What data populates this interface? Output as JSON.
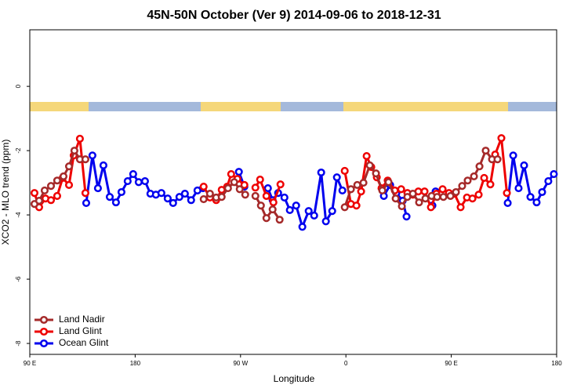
{
  "chart_data": {
    "type": "line",
    "title": "45N-50N October (Ver 9)   2014-09-06 to 2018-12-31",
    "x_label": "Longitude",
    "y_label": "XCO2 - MLO trend (ppm)",
    "xlim": [
      90,
      540
    ],
    "xticks": [
      {
        "value": 90,
        "label": "90 E"
      },
      180,
      {
        "value": 270,
        "label": "90 W"
      },
      {
        "value": 360,
        "label": "0"
      },
      {
        "value": 450,
        "label": "90 E"
      },
      {
        "value": 540,
        "label": "180"
      }
    ],
    "ylim": [
      -8.34,
      1.76
    ],
    "yticks": [
      -8,
      -6,
      -4,
      -2,
      0
    ],
    "legend": "bottom-left",
    "series": [
      {
        "name": "Land Nadir",
        "color": "#a52a2a",
        "x": [
          94.0,
          98.0,
          102.7,
          108.1,
          113.4,
          118.8,
          123.5,
          128.1,
          132.8,
          137.5,
          null,
          238.5,
          243.9,
          249.2,
          253.9,
          259.3,
          264.6,
          269.3,
          274.0,
          null,
          282.7,
          287.4,
          292.1,
          297.4,
          303.4,
          null,
          359.0,
          364.3,
          369.7,
          375.0,
          380.4,
          385.7,
          391.1,
          396.4,
          402.5,
          407.8,
          412.5,
          417.2,
          422.5,
          427.9,
          433.2,
          437.9,
          443.3,
          449.3,
          454.0,
          459.3,
          464.0,
          469.4,
          474.1,
          479.4,
          484.8,
          489.5
        ],
        "values": [
          -3.66,
          -3.56,
          -3.24,
          -3.1,
          -2.93,
          -2.8,
          -2.49,
          -2.0,
          -2.27,
          -2.27,
          null,
          -3.51,
          -3.34,
          -3.46,
          -3.44,
          -3.17,
          -2.98,
          -3.2,
          -3.37,
          null,
          -3.41,
          -3.71,
          -4.1,
          -3.83,
          -4.15,
          null,
          -3.76,
          -3.2,
          -3.07,
          -3.0,
          -2.46,
          -2.71,
          -3.24,
          -2.98,
          -3.49,
          -3.73,
          -3.44,
          -3.34,
          -3.61,
          -3.49,
          -3.41,
          -3.44,
          -3.44,
          -3.41,
          -3.29,
          -3.1,
          -2.93,
          -2.8,
          -2.49,
          -2.0,
          -2.27,
          -2.27
        ]
      },
      {
        "name": "Land Glint",
        "color": "#ee0000",
        "x": [
          94.0,
          98.0,
          103.4,
          108.1,
          113.4,
          118.1,
          123.5,
          127.5,
          132.8,
          137.5,
          null,
          238.5,
          243.9,
          249.2,
          253.9,
          258.6,
          262.0,
          267.3,
          273.3,
          null,
          282.7,
          286.7,
          292.1,
          298.1,
          304.1,
          null,
          359.0,
          364.3,
          369.0,
          373.0,
          377.7,
          381.7,
          386.4,
          390.4,
          395.7,
          401.8,
          407.2,
          412.5,
          417.2,
          421.9,
          427.2,
          432.6,
          437.3,
          442.6,
          448.0,
          452.7,
          458.0,
          463.4,
          468.1,
          473.4,
          478.1,
          483.4,
          487.5,
          492.8,
          497.5
        ],
        "values": [
          -3.32,
          -3.76,
          -3.49,
          -3.54,
          -3.41,
          -2.85,
          -3.07,
          -2.15,
          -1.63,
          -3.32,
          null,
          -3.12,
          -3.46,
          -3.54,
          -3.22,
          -3.12,
          -2.73,
          -2.88,
          -3.07,
          null,
          -3.15,
          -2.9,
          -3.41,
          -3.61,
          -3.05,
          null,
          -2.63,
          -3.66,
          -3.71,
          -3.27,
          -2.17,
          -2.51,
          -2.83,
          -3.17,
          -2.93,
          -3.24,
          -3.2,
          -3.32,
          -3.37,
          -3.27,
          -3.27,
          -3.76,
          -3.34,
          -3.2,
          -3.32,
          -3.34,
          -3.76,
          -3.46,
          -3.49,
          -3.37,
          -2.85,
          -3.05,
          -2.12,
          -1.61,
          -3.32
        ]
      },
      {
        "name": "Ocean Glint",
        "color": "#0000ee",
        "x": [
          138.2,
          143.5,
          148.2,
          152.9,
          158.3,
          163.6,
          168.3,
          173.6,
          178.3,
          183.0,
          188.4,
          193.0,
          197.7,
          202.4,
          207.8,
          212.4,
          217.8,
          222.5,
          227.8,
          233.2,
          237.9,
          null,
          268.6,
          273.3,
          null,
          293.4,
          297.4,
          302.1,
          307.5,
          312.1,
          317.5,
          322.8,
          328.2,
          332.9,
          338.9,
          342.9,
          348.3,
          352.3,
          357.0,
          null,
          392.4,
          397.8,
          403.1,
          408.5,
          411.8,
          null,
          433.9,
          436.6,
          null,
          498.2,
          502.9,
          507.5,
          512.2,
          517.6,
          522.9,
          527.6,
          532.9,
          537.6
        ],
        "values": [
          -3.63,
          -2.15,
          -3.17,
          -2.46,
          -3.44,
          -3.61,
          -3.29,
          -2.95,
          -2.73,
          -2.98,
          -2.95,
          -3.34,
          -3.37,
          -3.32,
          -3.49,
          -3.63,
          -3.44,
          -3.34,
          -3.54,
          -3.24,
          -3.17,
          null,
          -2.66,
          -3.12,
          null,
          -3.17,
          -3.54,
          -3.32,
          -3.46,
          -3.85,
          -3.71,
          -4.37,
          -3.88,
          -4.02,
          -2.68,
          -4.2,
          -3.88,
          -2.83,
          -3.24,
          null,
          -3.41,
          -3.07,
          -3.32,
          -3.56,
          -4.05,
          null,
          -3.71,
          -3.27,
          null,
          -3.63,
          -2.15,
          -3.17,
          -2.46,
          -3.44,
          -3.61,
          -3.29,
          -2.95,
          -2.73
        ]
      }
    ]
  }
}
